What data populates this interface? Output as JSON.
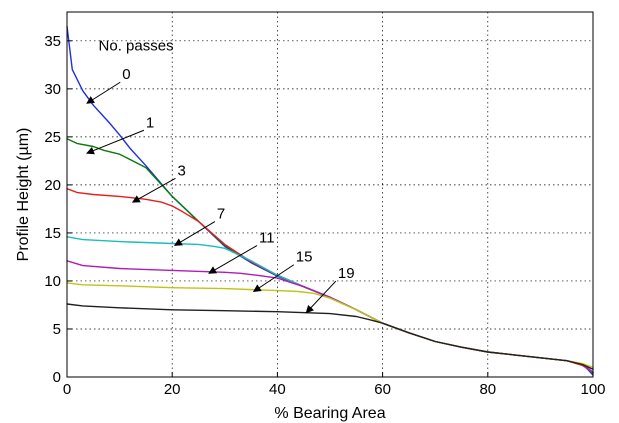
{
  "chart_data": {
    "type": "line",
    "title": "",
    "xlabel": "% Bearing Area",
    "ylabel": "Profile Height (µm)",
    "xlim": [
      0,
      100
    ],
    "ylim": [
      0,
      38
    ],
    "xticks": [
      0,
      20,
      40,
      60,
      80,
      100
    ],
    "yticks": [
      0,
      5,
      10,
      15,
      20,
      25,
      30,
      35
    ],
    "grid": true,
    "legend": "none",
    "annotation_title": "No. passes",
    "series": [
      {
        "name": "0",
        "color": "#1f2ee6",
        "x": [
          0,
          1,
          3,
          5,
          8,
          10,
          12,
          15,
          20,
          25,
          30,
          35,
          40,
          45,
          50,
          55,
          60,
          65,
          70,
          75,
          80,
          85,
          90,
          95,
          98,
          99,
          100
        ],
        "y": [
          36.5,
          32,
          29.8,
          28.3,
          26.5,
          25.2,
          23.8,
          22.0,
          18.8,
          16.2,
          13.6,
          11.9,
          10.5,
          9.4,
          8.3,
          7.0,
          5.6,
          4.6,
          3.7,
          3.1,
          2.6,
          2.3,
          2.0,
          1.7,
          1.3,
          0.8,
          0.2
        ]
      },
      {
        "name": "1",
        "color": "#0a7a0a",
        "x": [
          0,
          2,
          5,
          7,
          10,
          15,
          20,
          25,
          30,
          35,
          40,
          45,
          50,
          55,
          60,
          65,
          70,
          75,
          80,
          85,
          90,
          95,
          98,
          100
        ],
        "y": [
          24.8,
          24.3,
          24.0,
          23.6,
          23.2,
          21.8,
          18.8,
          16.2,
          13.7,
          12.0,
          10.6,
          9.4,
          8.3,
          7.0,
          5.6,
          4.6,
          3.7,
          3.1,
          2.6,
          2.3,
          2.0,
          1.7,
          1.3,
          0.4
        ]
      },
      {
        "name": "3",
        "color": "#e61e1e",
        "x": [
          0,
          2,
          5,
          10,
          15,
          18,
          20,
          22,
          25,
          30,
          35,
          40,
          45,
          50,
          55,
          60,
          65,
          70,
          75,
          80,
          85,
          90,
          95,
          98,
          100
        ],
        "y": [
          19.6,
          19.2,
          19.0,
          18.8,
          18.5,
          18.2,
          17.8,
          17.2,
          16.2,
          13.8,
          12.0,
          10.6,
          9.4,
          8.3,
          7.0,
          5.6,
          4.6,
          3.7,
          3.1,
          2.6,
          2.3,
          2.0,
          1.7,
          1.2,
          0.5
        ]
      },
      {
        "name": "7",
        "color": "#1cbcbc",
        "x": [
          0,
          3,
          10,
          20,
          25,
          28,
          30,
          35,
          40,
          45,
          50,
          55,
          60,
          65,
          70,
          75,
          80,
          85,
          90,
          95,
          98,
          100
        ],
        "y": [
          14.6,
          14.3,
          14.1,
          13.9,
          13.8,
          13.6,
          13.4,
          12.1,
          10.6,
          9.4,
          8.3,
          7.0,
          5.6,
          4.6,
          3.7,
          3.1,
          2.6,
          2.3,
          2.0,
          1.7,
          1.3,
          0.5
        ]
      },
      {
        "name": "11",
        "color": "#b01cb8",
        "x": [
          0,
          3,
          10,
          20,
          30,
          33,
          36,
          40,
          45,
          50,
          55,
          60,
          65,
          70,
          75,
          80,
          85,
          90,
          95,
          98,
          100
        ],
        "y": [
          12.1,
          11.6,
          11.3,
          11.1,
          10.9,
          10.8,
          10.6,
          10.3,
          9.4,
          8.3,
          7.0,
          5.6,
          4.6,
          3.7,
          3.1,
          2.6,
          2.3,
          2.0,
          1.7,
          1.3,
          0.5
        ]
      },
      {
        "name": "15",
        "color": "#c2c21a",
        "x": [
          0,
          3,
          10,
          20,
          30,
          40,
          44,
          47,
          50,
          55,
          60,
          65,
          70,
          75,
          80,
          85,
          90,
          95,
          98,
          100
        ],
        "y": [
          9.8,
          9.6,
          9.5,
          9.3,
          9.2,
          9.0,
          8.9,
          8.7,
          8.2,
          7.0,
          5.6,
          4.6,
          3.7,
          3.1,
          2.6,
          2.3,
          2.0,
          1.7,
          1.4,
          1.0
        ]
      },
      {
        "name": "19",
        "color": "#202020",
        "x": [
          0,
          3,
          10,
          20,
          30,
          40,
          50,
          55,
          58,
          60,
          65,
          70,
          75,
          80,
          85,
          90,
          95,
          98,
          100
        ],
        "y": [
          7.6,
          7.4,
          7.2,
          7.0,
          6.9,
          6.8,
          6.6,
          6.3,
          5.9,
          5.6,
          4.6,
          3.7,
          3.1,
          2.6,
          2.3,
          2.0,
          1.7,
          1.3,
          0.8
        ]
      }
    ],
    "annotations": [
      {
        "label": "0",
        "text_x": 10.5,
        "text_y": 31.0,
        "arrow_x": 3.8,
        "arrow_y": 28.5
      },
      {
        "label": "1",
        "text_x": 15.0,
        "text_y": 26.0,
        "arrow_x": 3.8,
        "arrow_y": 23.3
      },
      {
        "label": "3",
        "text_x": 21.0,
        "text_y": 21.0,
        "arrow_x": 12.5,
        "arrow_y": 18.2
      },
      {
        "label": "7",
        "text_x": 28.5,
        "text_y": 16.5,
        "arrow_x": 20.5,
        "arrow_y": 13.7
      },
      {
        "label": "11",
        "text_x": 36.5,
        "text_y": 14.0,
        "arrow_x": 27.0,
        "arrow_y": 10.8
      },
      {
        "label": "15",
        "text_x": 43.5,
        "text_y": 12.0,
        "arrow_x": 35.5,
        "arrow_y": 8.9
      },
      {
        "label": "19",
        "text_x": 51.5,
        "text_y": 10.3,
        "arrow_x": 45.5,
        "arrow_y": 6.7
      }
    ]
  }
}
